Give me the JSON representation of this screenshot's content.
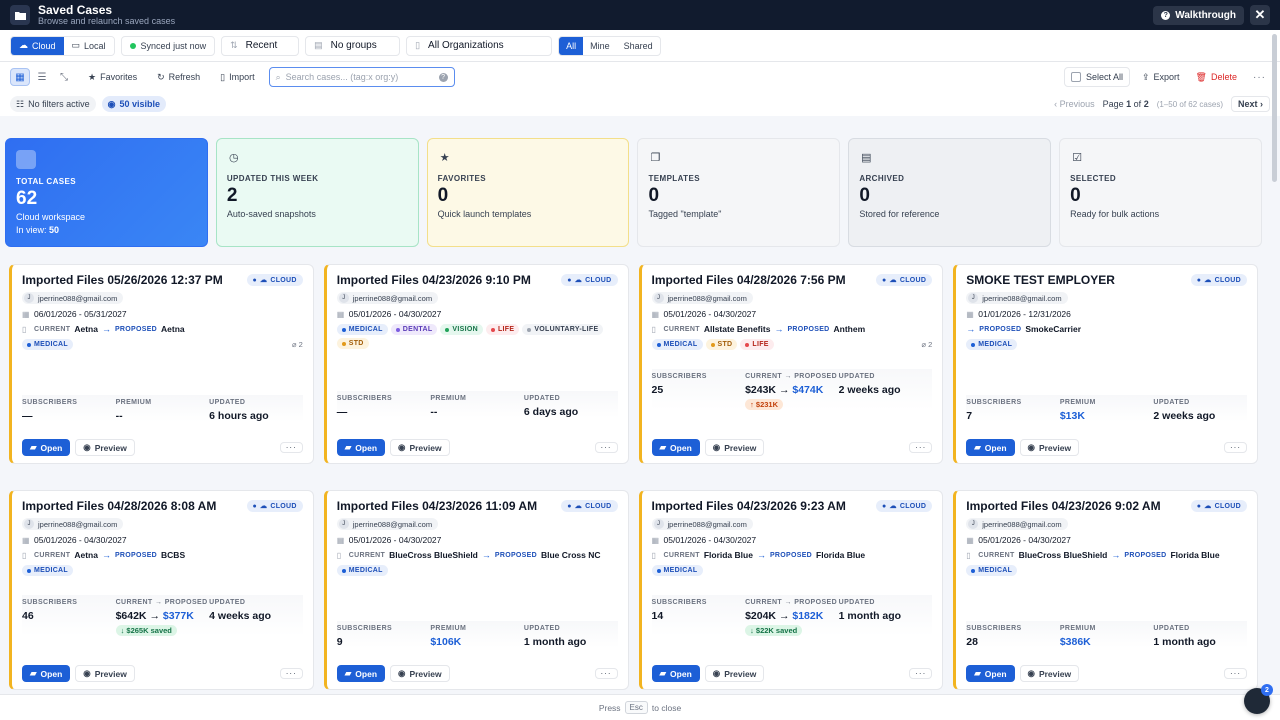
{
  "window": {
    "title": "Saved Cases",
    "subtitle": "Browse and relaunch saved cases",
    "walkthrough": "Walkthrough"
  },
  "storage": {
    "cloud": "Cloud",
    "local": "Local",
    "sync": "Synced just now"
  },
  "filters": {
    "sort": "Recent",
    "group": "No groups",
    "org": "All Organizations"
  },
  "scope": [
    "All",
    "Mine",
    "Shared"
  ],
  "toolbar": {
    "favorites": "Favorites",
    "refresh": "Refresh",
    "import": "Import",
    "search_placeholder": "Search cases... (tag:x org:y)",
    "select_all": "Select All",
    "export": "Export",
    "delete": "Delete"
  },
  "status": {
    "filters": "No filters active",
    "visible": "50 visible"
  },
  "pager": {
    "prev": "Previous",
    "page_word": "Page",
    "page": "1",
    "of": "of",
    "total": "2",
    "range": "(1–50 of 62 cases)",
    "next": "Next"
  },
  "stats": [
    {
      "label": "TOTAL CASES",
      "value": "62",
      "sub": "Cloud workspace",
      "sub2_label": "In view:",
      "sub2_value": "50"
    },
    {
      "label": "UPDATED THIS WEEK",
      "value": "2",
      "sub": "Auto-saved snapshots"
    },
    {
      "label": "FAVORITES",
      "value": "0",
      "sub": "Quick launch templates"
    },
    {
      "label": "TEMPLATES",
      "value": "0",
      "sub": "Tagged \"template\""
    },
    {
      "label": "ARCHIVED",
      "value": "0",
      "sub": "Stored for reference"
    },
    {
      "label": "SELECTED",
      "value": "0",
      "sub": "Ready for bulk actions"
    }
  ],
  "labels": {
    "cloud": "CLOUD",
    "current": "CURRENT",
    "proposed": "PROPOSED",
    "subscribers": "SUBSCRIBERS",
    "premium": "PREMIUM",
    "current_proposed": "CURRENT → PROPOSED",
    "updated": "UPDATED",
    "open": "Open",
    "preview": "Preview"
  },
  "cards": [
    {
      "title": "Imported Files 05/26/2026 12:37 PM",
      "email": "jperrine088@gmail.com",
      "avatar": "J",
      "dates": "06/01/2026 - 05/31/2027",
      "current": "Aetna",
      "proposed": "Aetna",
      "tags": [
        "MEDICAL"
      ],
      "attachments": "2",
      "subscribers": "—",
      "premium": "--",
      "updated": "6 hours ago"
    },
    {
      "title": "Imported Files 04/23/2026 9:10 PM",
      "email": "jperrine088@gmail.com",
      "avatar": "J",
      "dates": "05/01/2026 - 04/30/2027",
      "tags": [
        "MEDICAL",
        "DENTAL",
        "VISION",
        "LIFE",
        "VOLUNTARY-LIFE",
        "STD"
      ],
      "subscribers": "—",
      "premium": "--",
      "updated": "6 days ago"
    },
    {
      "title": "Imported Files 04/28/2026 7:56 PM",
      "email": "jperrine088@gmail.com",
      "avatar": "J",
      "dates": "05/01/2026 - 04/30/2027",
      "current": "Allstate Benefits",
      "proposed": "Anthem",
      "tags": [
        "MEDICAL",
        "STD",
        "LIFE"
      ],
      "attachments": "2",
      "subscribers": "25",
      "premium_current": "$243K",
      "premium_proposed": "$474K",
      "delta": "↑ $231K",
      "delta_dir": "up",
      "updated": "2 weeks ago"
    },
    {
      "title": "SMOKE TEST EMPLOYER",
      "email": "jperrine088@gmail.com",
      "avatar": "J",
      "dates": "01/01/2026 - 12/31/2026",
      "proposed": "SmokeCarrier",
      "tags": [
        "MEDICAL"
      ],
      "subscribers": "7",
      "premium": "$13K",
      "updated": "2 weeks ago"
    },
    {
      "title": "Imported Files 04/28/2026 8:08 AM",
      "email": "jperrine088@gmail.com",
      "avatar": "J",
      "dates": "05/01/2026 - 04/30/2027",
      "current": "Aetna",
      "proposed": "BCBS",
      "tags": [
        "MEDICAL"
      ],
      "subscribers": "46",
      "premium_current": "$642K",
      "premium_proposed": "$377K",
      "delta": "↓ $265K saved",
      "delta_dir": "down",
      "updated": "4 weeks ago"
    },
    {
      "title": "Imported Files 04/23/2026 11:09 AM",
      "email": "jperrine088@gmail.com",
      "avatar": "J",
      "dates": "05/01/2026 - 04/30/2027",
      "current": "BlueCross BlueShield",
      "proposed": "Blue Cross NC",
      "tags": [
        "MEDICAL"
      ],
      "subscribers": "9",
      "premium": "$106K",
      "updated": "1 month ago"
    },
    {
      "title": "Imported Files 04/23/2026 9:23 AM",
      "email": "jperrine088@gmail.com",
      "avatar": "J",
      "dates": "05/01/2026 - 04/30/2027",
      "current": "Florida Blue",
      "proposed": "Florida Blue",
      "tags": [
        "MEDICAL"
      ],
      "subscribers": "14",
      "premium_current": "$204K",
      "premium_proposed": "$182K",
      "delta": "↓ $22K saved",
      "delta_dir": "down",
      "updated": "1 month ago"
    },
    {
      "title": "Imported Files 04/23/2026 9:02 AM",
      "email": "jperrine088@gmail.com",
      "avatar": "J",
      "dates": "05/01/2026 - 04/30/2027",
      "current": "BlueCross BlueShield",
      "proposed": "Florida Blue",
      "tags": [
        "MEDICAL"
      ],
      "subscribers": "28",
      "premium": "$386K",
      "updated": "1 month ago"
    }
  ],
  "footer": {
    "press": "Press",
    "key": "Esc",
    "close": "to close"
  },
  "fab": {
    "badge": "2"
  },
  "colors": {
    "accent": "#1d5fd6",
    "card_border": "#f2b420",
    "header_bg": "#111b2e"
  }
}
